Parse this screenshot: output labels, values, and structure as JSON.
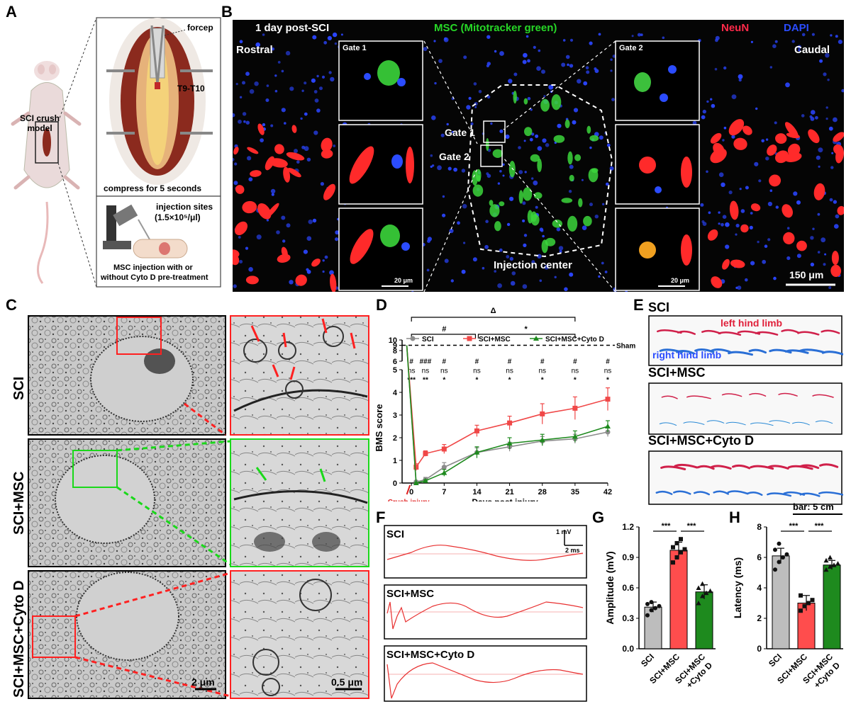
{
  "panels": {
    "a": {
      "label": "A",
      "model_label": "SCI crush\nmodel",
      "forcep": "forcep",
      "level": "T9-T10",
      "compress": "compress for 5 seconds",
      "injection_sites": "injection sites",
      "injection_conc": "(1.5×10⁵/μl)",
      "injection_note_1": "MSC injection with or",
      "injection_note_2": "without Cyto D pre-treatment"
    },
    "b": {
      "label": "B",
      "header_time": "1 day post-SCI",
      "header_msc": "MSC (Mitotracker green)",
      "header_neun": "NeuN",
      "header_dapi": "DAPI",
      "rostral": "Rostral",
      "caudal": "Caudal",
      "gate1": "Gate 1",
      "gate2": "Gate 2",
      "injection_center": "Injection center",
      "scale_main": "150 μm",
      "scale_inset": "20 μm"
    },
    "c": {
      "label": "C",
      "rows": [
        "SCI",
        "SCI+MSC",
        "SCI+MSC+Cyto D"
      ],
      "scale_left": "2 μm",
      "scale_right": "0.5 μm"
    },
    "d": {
      "label": "D",
      "sig_top": "Δ",
      "sig_left": "#",
      "sig_right": "*",
      "sham": "Sham",
      "crush": "Crush injury",
      "row_hash": [
        "#",
        "#",
        "###",
        "#",
        "#",
        "#",
        "#",
        "#",
        "#"
      ],
      "row_ns": [
        "ns",
        "ns",
        "ns",
        "ns",
        "ns",
        "ns",
        "ns",
        "ns",
        "ns"
      ],
      "row_star": [
        "*",
        "***",
        "**",
        "*",
        "*",
        "*",
        "*",
        "*",
        "*"
      ]
    },
    "e": {
      "label": "E",
      "groups": [
        "SCI",
        "SCI+MSC",
        "SCI+MSC+Cyto D"
      ],
      "left_limb": "left hind limb",
      "right_limb": "right hind limb",
      "bar": "bar: 5 cm"
    },
    "f": {
      "label": "F",
      "groups": [
        "SCI",
        "SCI+MSC",
        "SCI+MSC+Cyto D"
      ],
      "scale_mv": "1 mV",
      "scale_ms": "2 ms"
    },
    "g": {
      "label": "G",
      "sig": [
        "***",
        "***"
      ]
    },
    "h": {
      "label": "H",
      "sig": [
        "***",
        "***"
      ]
    }
  },
  "chart_data": [
    {
      "type": "line",
      "panel": "D",
      "xlabel": "Days post injury",
      "ylabel": "BMS score",
      "x": [
        -1,
        1,
        3,
        7,
        14,
        21,
        28,
        35,
        42
      ],
      "xticks": [
        0,
        7,
        14,
        21,
        28,
        35,
        42
      ],
      "ylim": [
        0,
        10
      ],
      "yticks": [
        0,
        1,
        2,
        3,
        4,
        5,
        6,
        8,
        9,
        10
      ],
      "sham_level": 9,
      "series": [
        {
          "name": "SCI",
          "color": "#8c8c8c",
          "marker": "circle",
          "values": [
            9,
            0.05,
            0.15,
            0.7,
            1.35,
            1.6,
            1.85,
            1.95,
            2.25
          ],
          "errors": [
            0,
            0.05,
            0.1,
            0.2,
            0.2,
            0.2,
            0.2,
            0.2,
            0.2
          ]
        },
        {
          "name": "SCI+MSC",
          "color": "#f04848",
          "marker": "square",
          "values": [
            9,
            0.7,
            1.3,
            1.5,
            2.3,
            2.65,
            3.05,
            3.3,
            3.7
          ],
          "errors": [
            0,
            0.15,
            0.12,
            0.2,
            0.25,
            0.3,
            0.45,
            0.5,
            0.5
          ]
        },
        {
          "name": "SCI+MSC+Cyto D",
          "color": "#1e8a1e",
          "marker": "triangle",
          "values": [
            9,
            0.0,
            0.1,
            0.45,
            1.35,
            1.75,
            1.9,
            2.05,
            2.5
          ],
          "errors": [
            0,
            0.03,
            0.05,
            0.15,
            0.25,
            0.25,
            0.25,
            0.25,
            0.25
          ]
        }
      ]
    },
    {
      "type": "bar",
      "panel": "G",
      "categories": [
        "SCI",
        "SCI+MSC",
        "SCI+MSC\n+Cyto D"
      ],
      "values": [
        0.41,
        0.97,
        0.56
      ],
      "errors": [
        0.05,
        0.08,
        0.07
      ],
      "colors": [
        "#bdbdbd",
        "#ff4d4d",
        "#1e8a1e"
      ],
      "points": [
        [
          0.33,
          0.38,
          0.4,
          0.42,
          0.44,
          0.46
        ],
        [
          0.85,
          0.9,
          0.95,
          0.98,
          1.0,
          1.04,
          1.08
        ],
        [
          0.45,
          0.52,
          0.55,
          0.57,
          0.6,
          0.64
        ]
      ],
      "ylabel": "Amplitude (mV)",
      "ylim": [
        0,
        1.2
      ],
      "yticks": [
        0.0,
        0.3,
        0.6,
        0.9,
        1.2
      ]
    },
    {
      "type": "bar",
      "panel": "H",
      "categories": [
        "SCI",
        "SCI+MSC",
        "SCI+MSC\n+Cyto D"
      ],
      "values": [
        6.1,
        3.0,
        5.5
      ],
      "errors": [
        0.5,
        0.5,
        0.3
      ],
      "colors": [
        "#bdbdbd",
        "#ff4d4d",
        "#1e8a1e"
      ],
      "points": [
        [
          5.2,
          5.7,
          6.0,
          6.2,
          6.5,
          6.9
        ],
        [
          2.5,
          2.8,
          3.0,
          3.2,
          3.5
        ],
        [
          5.2,
          5.4,
          5.5,
          5.6,
          5.8,
          6.0
        ]
      ],
      "ylabel": "Latency (ms)",
      "ylim": [
        0,
        8
      ],
      "yticks": [
        0,
        2,
        4,
        6,
        8
      ]
    }
  ]
}
